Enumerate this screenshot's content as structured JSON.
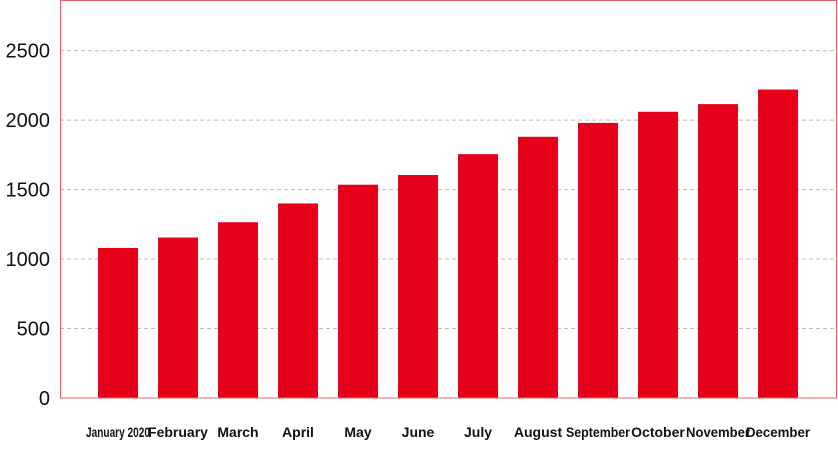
{
  "chart_data": {
    "type": "bar",
    "categories": [
      "January 2020",
      "February",
      "March",
      "April",
      "May",
      "June",
      "July",
      "August",
      "September",
      "October",
      "November",
      "December"
    ],
    "values": [
      1080,
      1155,
      1265,
      1400,
      1535,
      1605,
      1755,
      1880,
      1980,
      2060,
      2115,
      2220
    ],
    "title": "",
    "xlabel": "",
    "ylabel": "",
    "ylim": [
      0,
      2850
    ],
    "yticks": [
      0,
      500,
      1000,
      1500,
      2000,
      2500
    ],
    "grid": true,
    "colors": {
      "bar": "#e60019",
      "frame": "#e06666",
      "grid": "#bdbdbd",
      "text": "#111111"
    }
  }
}
